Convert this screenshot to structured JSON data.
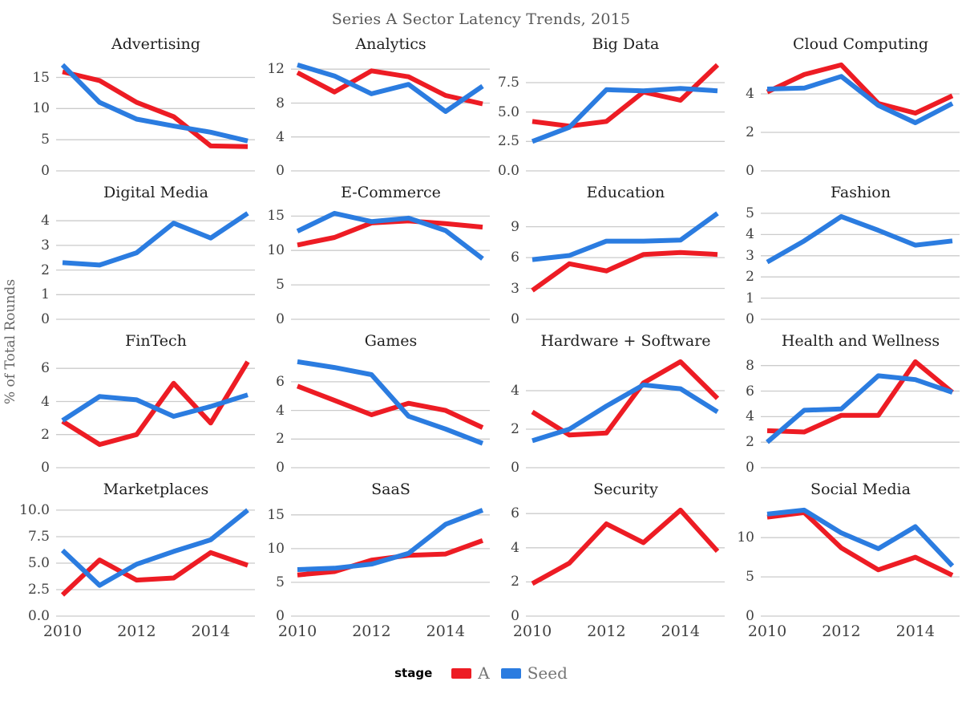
{
  "header": {
    "title": "Series A Sector Latency Trends, 2015"
  },
  "axes": {
    "ylabel": "% of Total Rounds"
  },
  "legend": {
    "label": "stage",
    "entries": [
      {
        "name": "A",
        "color": "#ed1c24"
      },
      {
        "name": "Seed",
        "color": "#2b7ce0"
      }
    ]
  },
  "colors": {
    "series_a": "#ed1c24",
    "series_seed": "#2b7ce0",
    "gridline": "#cbcbcb",
    "tick_text": "#404040",
    "panel_title": "#1f1f1f",
    "figure_title": "#595959"
  },
  "chart_data": {
    "type": "line",
    "title": "Series A Sector Latency Trends, 2015",
    "ylabel": "% of Total Rounds",
    "x": [
      2010,
      2011,
      2012,
      2013,
      2014,
      2015
    ],
    "xtick_labels": [
      "2010",
      "2012",
      "2014"
    ],
    "xtick_years": [
      2010,
      2012,
      2014
    ],
    "legend_position": "bottom",
    "grid": "horizontal-only",
    "panels": [
      {
        "title": "Advertising",
        "ytick_values": [
          0,
          5,
          10,
          15
        ],
        "ytick_labels": [
          "0",
          "5",
          "10",
          "15"
        ],
        "series": [
          {
            "name": "A",
            "values": [
              15.9,
              14.5,
              11,
              8.7,
              4,
              3.9
            ]
          },
          {
            "name": "Seed",
            "values": [
              17,
              11,
              8.3,
              7.2,
              6.2,
              4.8
            ]
          }
        ]
      },
      {
        "title": "Analytics",
        "ytick_values": [
          0,
          4,
          8,
          12
        ],
        "ytick_labels": [
          "0",
          "4",
          "8",
          "12"
        ],
        "series": [
          {
            "name": "A",
            "values": [
              11.6,
              9.3,
              11.8,
              11.1,
              8.9,
              7.9
            ]
          },
          {
            "name": "Seed",
            "values": [
              12.5,
              11.2,
              9.1,
              10.2,
              7,
              10
            ]
          }
        ]
      },
      {
        "title": "Big Data",
        "ytick_values": [
          0,
          2.5,
          5,
          7.5
        ],
        "ytick_labels": [
          "0.0",
          "2.5",
          "5.0",
          "7.5"
        ],
        "series": [
          {
            "name": "A",
            "values": [
              4.2,
              3.8,
              4.2,
              6.7,
              6,
              9
            ]
          },
          {
            "name": "Seed",
            "values": [
              2.5,
              3.7,
              6.9,
              6.8,
              7,
              6.8
            ]
          }
        ]
      },
      {
        "title": "Cloud Computing",
        "ytick_values": [
          0,
          2,
          4
        ],
        "ytick_labels": [
          "0",
          "2",
          "4"
        ],
        "series": [
          {
            "name": "A",
            "values": [
              4.1,
              5,
              5.5,
              3.5,
              3,
              3.9
            ]
          },
          {
            "name": "Seed",
            "values": [
              4.25,
              4.3,
              4.9,
              3.4,
              2.5,
              3.5
            ]
          }
        ]
      },
      {
        "title": "Digital Media",
        "ytick_values": [
          0,
          1,
          2,
          3,
          4
        ],
        "ytick_labels": [
          "0",
          "1",
          "2",
          "3",
          "4"
        ],
        "series": [
          {
            "name": "Seed",
            "values": [
              2.3,
              2.2,
              2.7,
              3.9,
              3.3,
              4.3
            ]
          }
        ]
      },
      {
        "title": "E-Commerce",
        "ytick_values": [
          0,
          5,
          10,
          15
        ],
        "ytick_labels": [
          "0",
          "5",
          "10",
          "15"
        ],
        "series": [
          {
            "name": "A",
            "values": [
              10.8,
              11.9,
              14,
              14.3,
              13.9,
              13.4
            ]
          },
          {
            "name": "Seed",
            "values": [
              12.8,
              15.4,
              14.2,
              14.7,
              12.9,
              8.8
            ]
          }
        ]
      },
      {
        "title": "Education",
        "ytick_values": [
          0,
          3,
          6,
          9
        ],
        "ytick_labels": [
          "0",
          "3",
          "6",
          "9"
        ],
        "series": [
          {
            "name": "A",
            "values": [
              2.8,
              5.4,
              4.7,
              6.3,
              6.5,
              6.3
            ]
          },
          {
            "name": "Seed",
            "values": [
              5.8,
              6.2,
              7.6,
              7.6,
              7.7,
              10.3
            ]
          }
        ]
      },
      {
        "title": "Fashion",
        "ytick_values": [
          0,
          1,
          2,
          3,
          4,
          5
        ],
        "ytick_labels": [
          "0",
          "1",
          "2",
          "3",
          "4",
          "5"
        ],
        "series": [
          {
            "name": "Seed",
            "values": [
              2.7,
              3.7,
              4.85,
              4.2,
              3.5,
              3.7
            ]
          }
        ]
      },
      {
        "title": "FinTech",
        "ytick_values": [
          0,
          2,
          4,
          6
        ],
        "ytick_labels": [
          "0",
          "2",
          "4",
          "6"
        ],
        "series": [
          {
            "name": "A",
            "values": [
              2.8,
              1.4,
              2,
              5.1,
              2.7,
              6.4
            ]
          },
          {
            "name": "Seed",
            "values": [
              2.85,
              4.3,
              4.1,
              3.1,
              3.7,
              4.4
            ]
          }
        ]
      },
      {
        "title": "Games",
        "ytick_values": [
          0,
          2,
          4,
          6
        ],
        "ytick_labels": [
          "0",
          "2",
          "4",
          "6"
        ],
        "series": [
          {
            "name": "A",
            "values": [
              5.7,
              4.7,
              3.7,
              4.5,
              4,
              2.8
            ]
          },
          {
            "name": "Seed",
            "values": [
              7.4,
              7,
              6.5,
              3.6,
              2.7,
              1.7
            ]
          }
        ]
      },
      {
        "title": "Hardware + Software",
        "ytick_values": [
          0,
          2,
          4
        ],
        "ytick_labels": [
          "0",
          "2",
          "4"
        ],
        "series": [
          {
            "name": "A",
            "values": [
              2.9,
              1.7,
              1.8,
              4.4,
              5.5,
              3.6
            ]
          },
          {
            "name": "Seed",
            "values": [
              1.4,
              2,
              3.2,
              4.3,
              4.1,
              2.9
            ]
          }
        ]
      },
      {
        "title": "Health and Wellness",
        "ytick_values": [
          0,
          2,
          4,
          6,
          8
        ],
        "ytick_labels": [
          "0",
          "2",
          "4",
          "6",
          "8"
        ],
        "series": [
          {
            "name": "A",
            "values": [
              2.9,
              2.8,
              4.1,
              4.1,
              8.3,
              5.9
            ]
          },
          {
            "name": "Seed",
            "values": [
              2,
              4.5,
              4.6,
              7.2,
              6.9,
              5.9
            ]
          }
        ]
      },
      {
        "title": "Marketplaces",
        "ytick_values": [
          0,
          2.5,
          5,
          7.5,
          10
        ],
        "ytick_labels": [
          "0.0",
          "2.5",
          "5.0",
          "7.5",
          "10.0"
        ],
        "series": [
          {
            "name": "A",
            "values": [
              2,
              5.3,
              3.4,
              3.6,
              6,
              4.8
            ]
          },
          {
            "name": "Seed",
            "values": [
              6.2,
              2.9,
              4.9,
              6.1,
              7.2,
              10
            ]
          }
        ]
      },
      {
        "title": "SaaS",
        "ytick_values": [
          0,
          5,
          10,
          15
        ],
        "ytick_labels": [
          "0",
          "5",
          "10",
          "15"
        ],
        "series": [
          {
            "name": "A",
            "values": [
              6.1,
              6.6,
              8.3,
              9,
              9.2,
              11.2
            ]
          },
          {
            "name": "Seed",
            "values": [
              6.9,
              7.1,
              7.7,
              9.3,
              13.6,
              15.7
            ]
          }
        ]
      },
      {
        "title": "Security",
        "ytick_values": [
          0,
          2,
          4,
          6
        ],
        "ytick_labels": [
          "0",
          "2",
          "4",
          "6"
        ],
        "series": [
          {
            "name": "A",
            "values": [
              1.9,
              3.1,
              5.4,
              4.3,
              6.2,
              3.8
            ]
          }
        ]
      },
      {
        "title": "Social Media",
        "ytick_values": [
          0,
          5,
          10
        ],
        "ytick_labels": [
          "0",
          "5",
          "10"
        ],
        "series": [
          {
            "name": "A",
            "values": [
              12.6,
              13.2,
              8.7,
              5.9,
              7.5,
              5.2
            ]
          },
          {
            "name": "Seed",
            "values": [
              13,
              13.5,
              10.6,
              8.6,
              11.4,
              6.4
            ]
          }
        ]
      }
    ]
  }
}
